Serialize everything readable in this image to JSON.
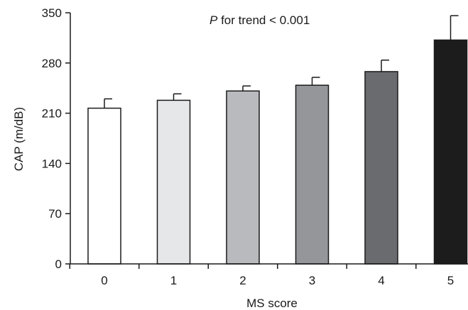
{
  "chart_data": {
    "type": "bar",
    "title": "",
    "xlabel": "MS score",
    "ylabel": "CAP (m/dB)",
    "categories": [
      "0",
      "1",
      "2",
      "3",
      "4",
      "5"
    ],
    "values": [
      217,
      228,
      241,
      249,
      268,
      312
    ],
    "error_upper": [
      230,
      237,
      248,
      260,
      284,
      346
    ],
    "ylim": [
      0,
      350
    ],
    "yticks": [
      0,
      70,
      140,
      210,
      280,
      350
    ],
    "grid": false,
    "annotation": {
      "prefix": "P",
      "text": " for trend < 0.001"
    },
    "colors": {
      "bars": [
        "#ffffff",
        "#e6e7e9",
        "#b8babd",
        "#94969a",
        "#6a6b6f",
        "#1c1c1c"
      ],
      "outline": "#1a1a1a"
    }
  }
}
